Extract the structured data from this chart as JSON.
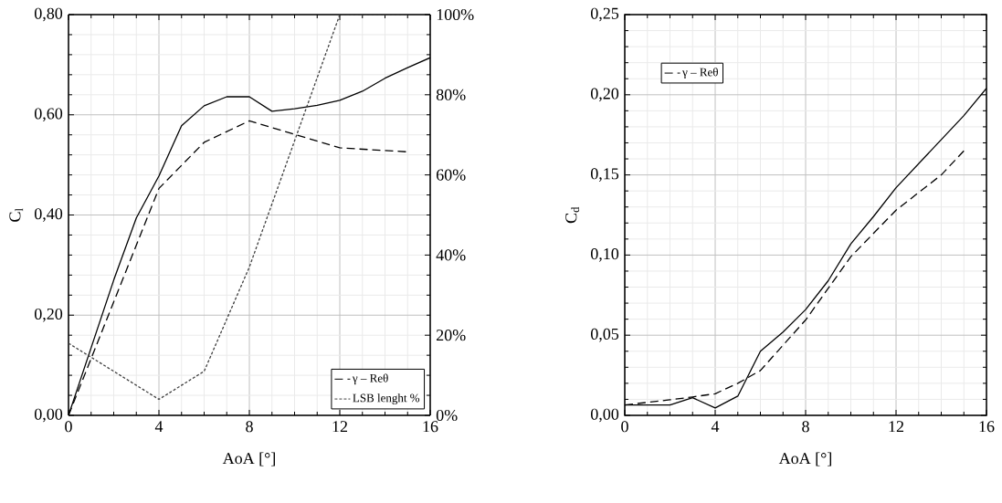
{
  "chart_data": [
    {
      "type": "line",
      "xlabel": "AoA [°]",
      "ylabel": "C$_{l}$",
      "xlim": [
        0,
        16
      ],
      "ylim": [
        0,
        0.8
      ],
      "y2lim": [
        0,
        100
      ],
      "xticks": [
        0,
        4,
        8,
        12,
        16
      ],
      "yticks": [
        {
          "value": 0,
          "label": "0,00"
        },
        {
          "value": 0.2,
          "label": "0,20"
        },
        {
          "value": 0.4,
          "label": "0,40"
        },
        {
          "value": 0.6,
          "label": "0,60"
        },
        {
          "value": 0.8,
          "label": "0,80"
        }
      ],
      "y2ticks": [
        {
          "value": 0,
          "label": "0%"
        },
        {
          "value": 20,
          "label": "20%"
        },
        {
          "value": 40,
          "label": "40%"
        },
        {
          "value": 60,
          "label": "60%"
        },
        {
          "value": 80,
          "label": "80%"
        },
        {
          "value": 100,
          "label": "100%"
        }
      ],
      "grid": true,
      "legend": "bottom right",
      "series": [
        {
          "color": "#000000",
          "line_style": "solid",
          "x": [
            0,
            1,
            2,
            3,
            4,
            5,
            6,
            7,
            8,
            9,
            10,
            11,
            12,
            13,
            14,
            15,
            16
          ],
          "values": [
            0,
            0.135,
            0.27,
            0.394,
            0.478,
            0.578,
            0.618,
            0.636,
            0.636,
            0.607,
            0.612,
            0.619,
            0.629,
            0.647,
            0.673,
            0.694,
            0.714
          ]
        },
        {
          "name": "γ – Reθ",
          "color": "#000000",
          "line_style": "dashed",
          "x": [
            0,
            4,
            6,
            8,
            12,
            15
          ],
          "values": [
            0,
            0.453,
            0.545,
            0.588,
            0.534,
            0.526
          ]
        },
        {
          "name": "LSB lenght %",
          "color": "#404040",
          "line_style": "dotted",
          "axis": "y2",
          "x": [
            0,
            4,
            6,
            8,
            12,
            15
          ],
          "values": [
            18,
            4,
            11,
            37,
            100,
            100
          ]
        }
      ]
    },
    {
      "type": "line",
      "xlabel": "AoA [°]",
      "ylabel": "C$_{d}$",
      "xlim": [
        0,
        16
      ],
      "ylim": [
        0,
        0.25
      ],
      "xticks": [
        0,
        4,
        8,
        12,
        16
      ],
      "yticks": [
        {
          "value": 0,
          "label": "0,00"
        },
        {
          "value": 0.05,
          "label": "0,05"
        },
        {
          "value": 0.1,
          "label": "0,10"
        },
        {
          "value": 0.15,
          "label": "0,15"
        },
        {
          "value": 0.2,
          "label": "0,20"
        },
        {
          "value": 0.25,
          "label": "0,25"
        }
      ],
      "grid": true,
      "legend": "top left",
      "series": [
        {
          "color": "#000000",
          "line_style": "solid",
          "x": [
            0,
            1,
            2,
            3,
            4,
            5,
            6,
            7,
            8,
            9,
            10,
            11,
            12,
            13,
            14,
            15,
            16
          ],
          "values": [
            0.0065,
            0.0065,
            0.0065,
            0.011,
            0.0046,
            0.012,
            0.04,
            0.052,
            0.066,
            0.084,
            0.107,
            0.124,
            0.142,
            0.157,
            0.172,
            0.187,
            0.204
          ]
        },
        {
          "name": "γ – Reθ",
          "color": "#000000",
          "line_style": "dashed",
          "x": [
            0,
            2,
            3,
            4,
            5,
            6,
            8,
            10,
            12,
            13,
            14,
            15
          ],
          "values": [
            0.0065,
            0.0097,
            0.0115,
            0.0135,
            0.02,
            0.028,
            0.0595,
            0.099,
            0.128,
            0.139,
            0.15,
            0.165
          ]
        }
      ]
    }
  ]
}
